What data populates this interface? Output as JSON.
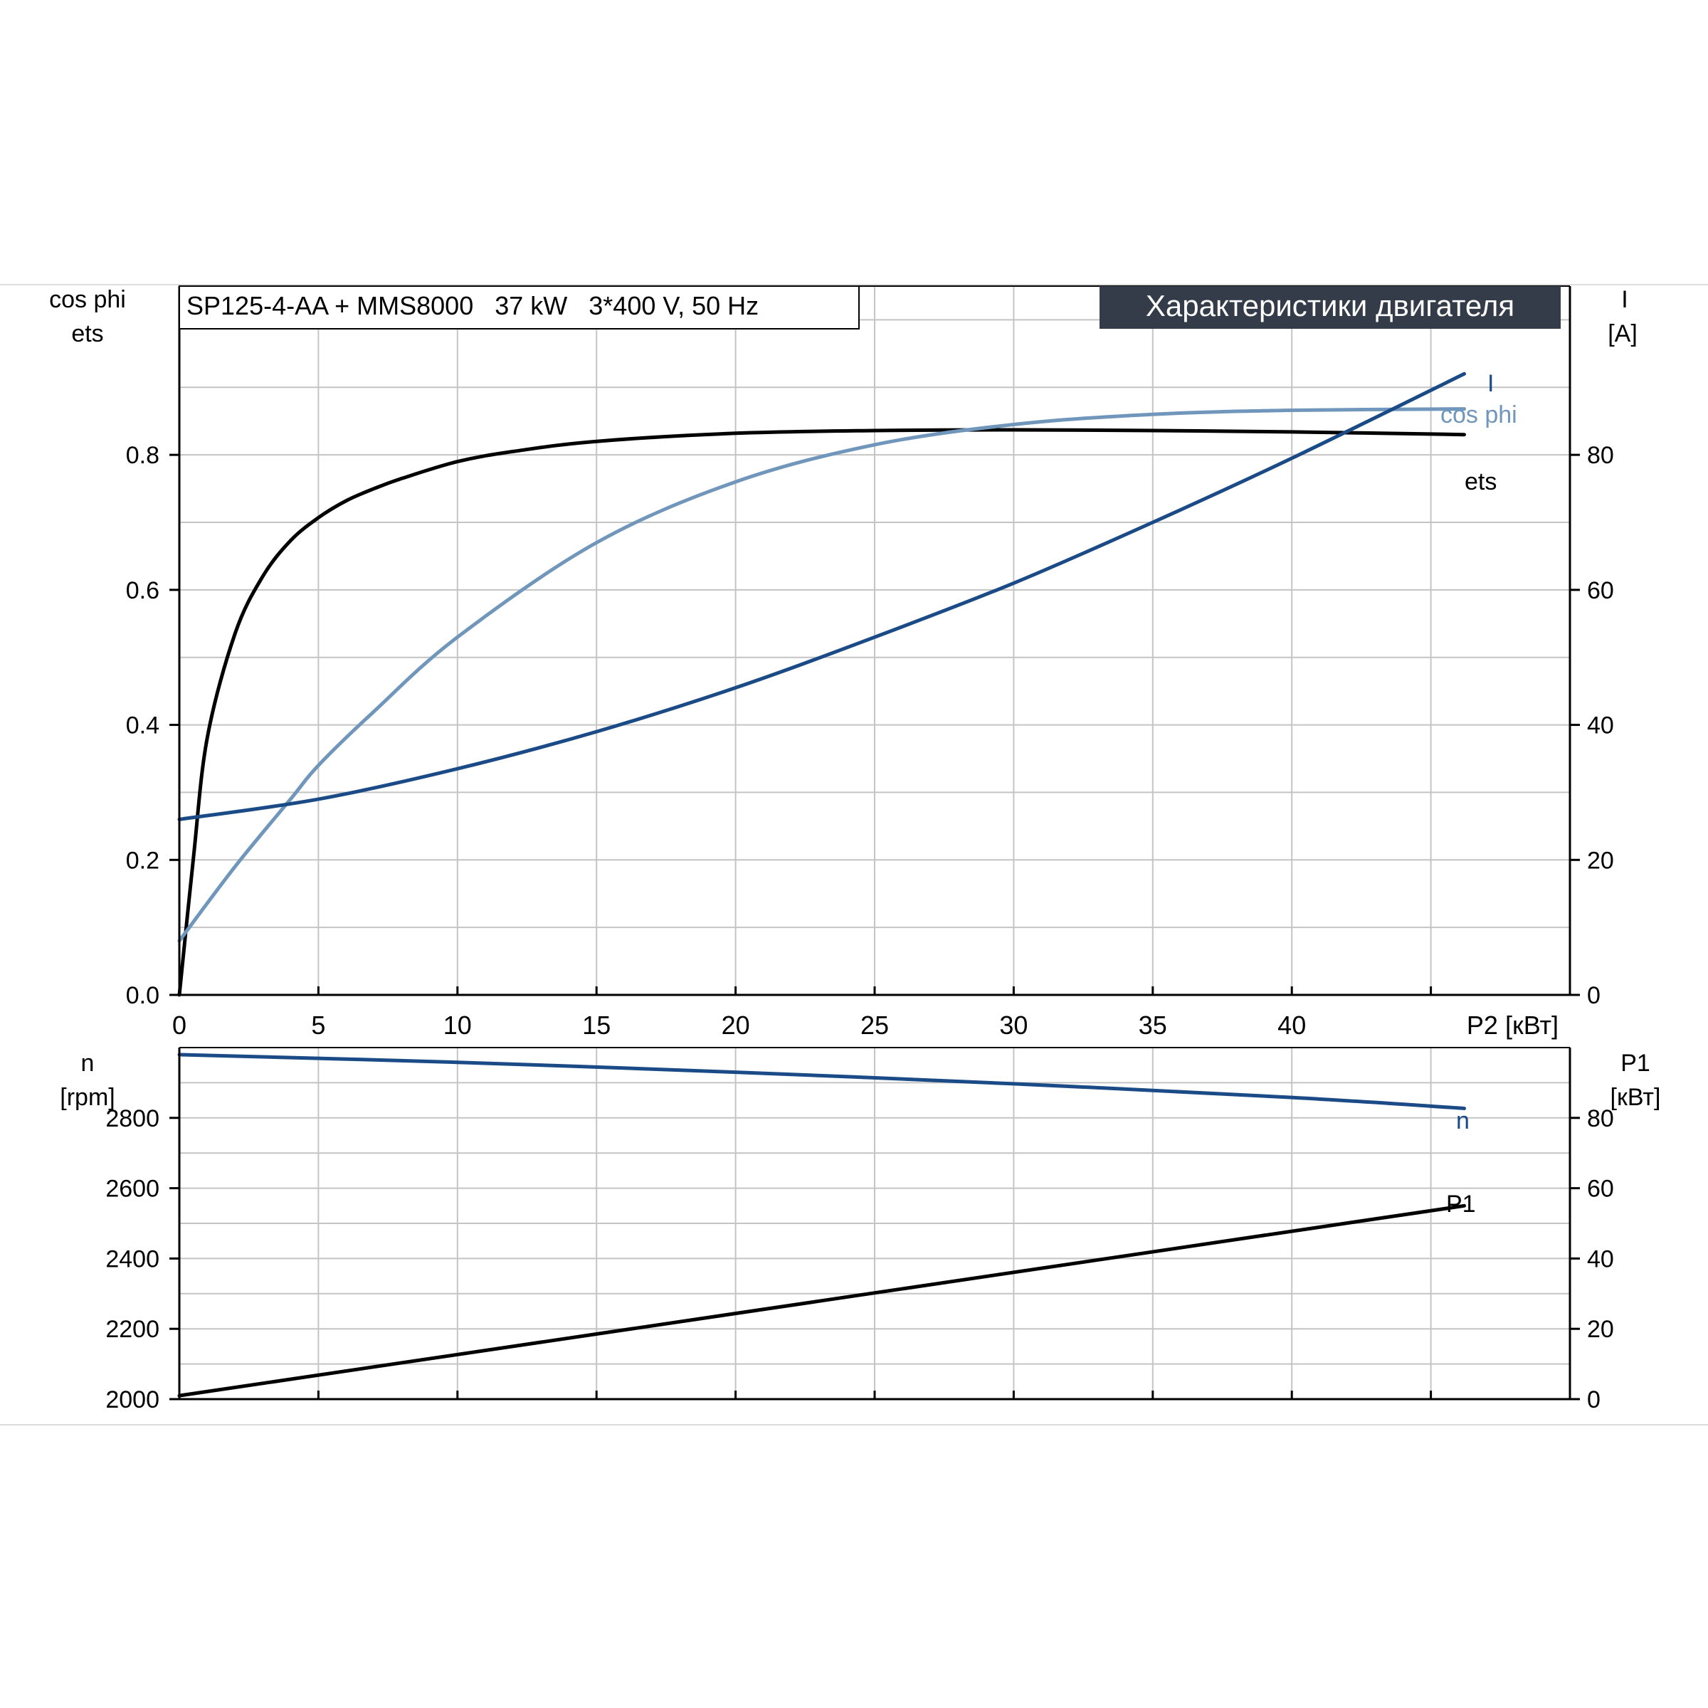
{
  "chart_data": [
    {
      "type": "line",
      "model_box": "SP125-4-AA + MMS8000   37 kW   3*400 V, 50 Hz",
      "title_badge": "Характеристики двигателя",
      "left_axis": {
        "label_line1": "cos phi",
        "label_line2": "ets",
        "ylim": [
          0,
          1.05
        ],
        "ticks": [
          0.0,
          0.2,
          0.4,
          0.6,
          0.8
        ],
        "tick_labels": [
          "0.0",
          "0.2",
          "0.4",
          "0.6",
          "0.8"
        ]
      },
      "right_axis": {
        "label_line1": "I",
        "label_line2": "[A]",
        "ylim": [
          0,
          105
        ],
        "ticks": [
          0,
          20,
          40,
          60,
          80
        ],
        "tick_labels": [
          "0",
          "20",
          "40",
          "60",
          "80"
        ]
      },
      "x_axis": {
        "label": "P2 [кВт]",
        "xlim": [
          0,
          50
        ],
        "ticks": [
          0,
          5,
          10,
          15,
          20,
          25,
          30,
          35,
          40
        ],
        "tick_labels": [
          "0",
          "5",
          "10",
          "15",
          "20",
          "25",
          "30",
          "35",
          "40"
        ]
      },
      "grid": true,
      "series": [
        {
          "name": "ets",
          "axis": "left",
          "color": "#000000",
          "x": [
            0,
            0.5,
            1,
            2,
            3,
            4,
            5,
            6,
            7,
            8,
            10,
            12,
            15,
            20,
            25,
            30,
            35,
            40,
            46.2
          ],
          "y": [
            0.0,
            0.2,
            0.38,
            0.535,
            0.62,
            0.673,
            0.707,
            0.732,
            0.75,
            0.765,
            0.79,
            0.805,
            0.82,
            0.832,
            0.836,
            0.837,
            0.836,
            0.834,
            0.83
          ]
        },
        {
          "name": "cos phi",
          "axis": "left",
          "color": "#7097bb",
          "x": [
            0,
            2,
            4,
            5,
            7,
            10,
            15,
            20,
            25,
            30,
            35,
            40,
            46.2
          ],
          "y": [
            0.08,
            0.19,
            0.29,
            0.34,
            0.42,
            0.53,
            0.67,
            0.76,
            0.815,
            0.845,
            0.86,
            0.866,
            0.868
          ]
        },
        {
          "name": "I",
          "axis": "right",
          "color": "#1b4b87",
          "x": [
            0,
            5,
            10,
            15,
            20,
            25,
            30,
            35,
            40,
            46.2
          ],
          "y": [
            26,
            29,
            33.5,
            39,
            45.5,
            53,
            61,
            70,
            79.5,
            92
          ]
        }
      ]
    },
    {
      "type": "line",
      "left_axis": {
        "label_line1": "n",
        "label_line2": "[rpm]",
        "ylim": [
          2000,
          3000
        ],
        "ticks": [
          2000,
          2200,
          2400,
          2600,
          2800
        ],
        "tick_labels": [
          "2000",
          "2200",
          "2400",
          "2600",
          "2800"
        ]
      },
      "right_axis": {
        "label_line1": "P1",
        "label_line2": "[кВт]",
        "ylim": [
          0,
          100
        ],
        "ticks": [
          0,
          20,
          40,
          60,
          80
        ],
        "tick_labels": [
          "0",
          "20",
          "40",
          "60",
          "80"
        ]
      },
      "x_axis": {
        "xlim": [
          0,
          50
        ]
      },
      "grid": true,
      "series": [
        {
          "name": "n",
          "axis": "left",
          "color": "#1b4b87",
          "x": [
            0,
            10,
            20,
            30,
            40,
            46.2
          ],
          "y": [
            2980,
            2958,
            2930,
            2897,
            2858,
            2827
          ]
        },
        {
          "name": "P1",
          "axis": "right",
          "color": "#000000",
          "x": [
            0,
            46.2
          ],
          "y": [
            1,
            55
          ]
        }
      ]
    }
  ]
}
